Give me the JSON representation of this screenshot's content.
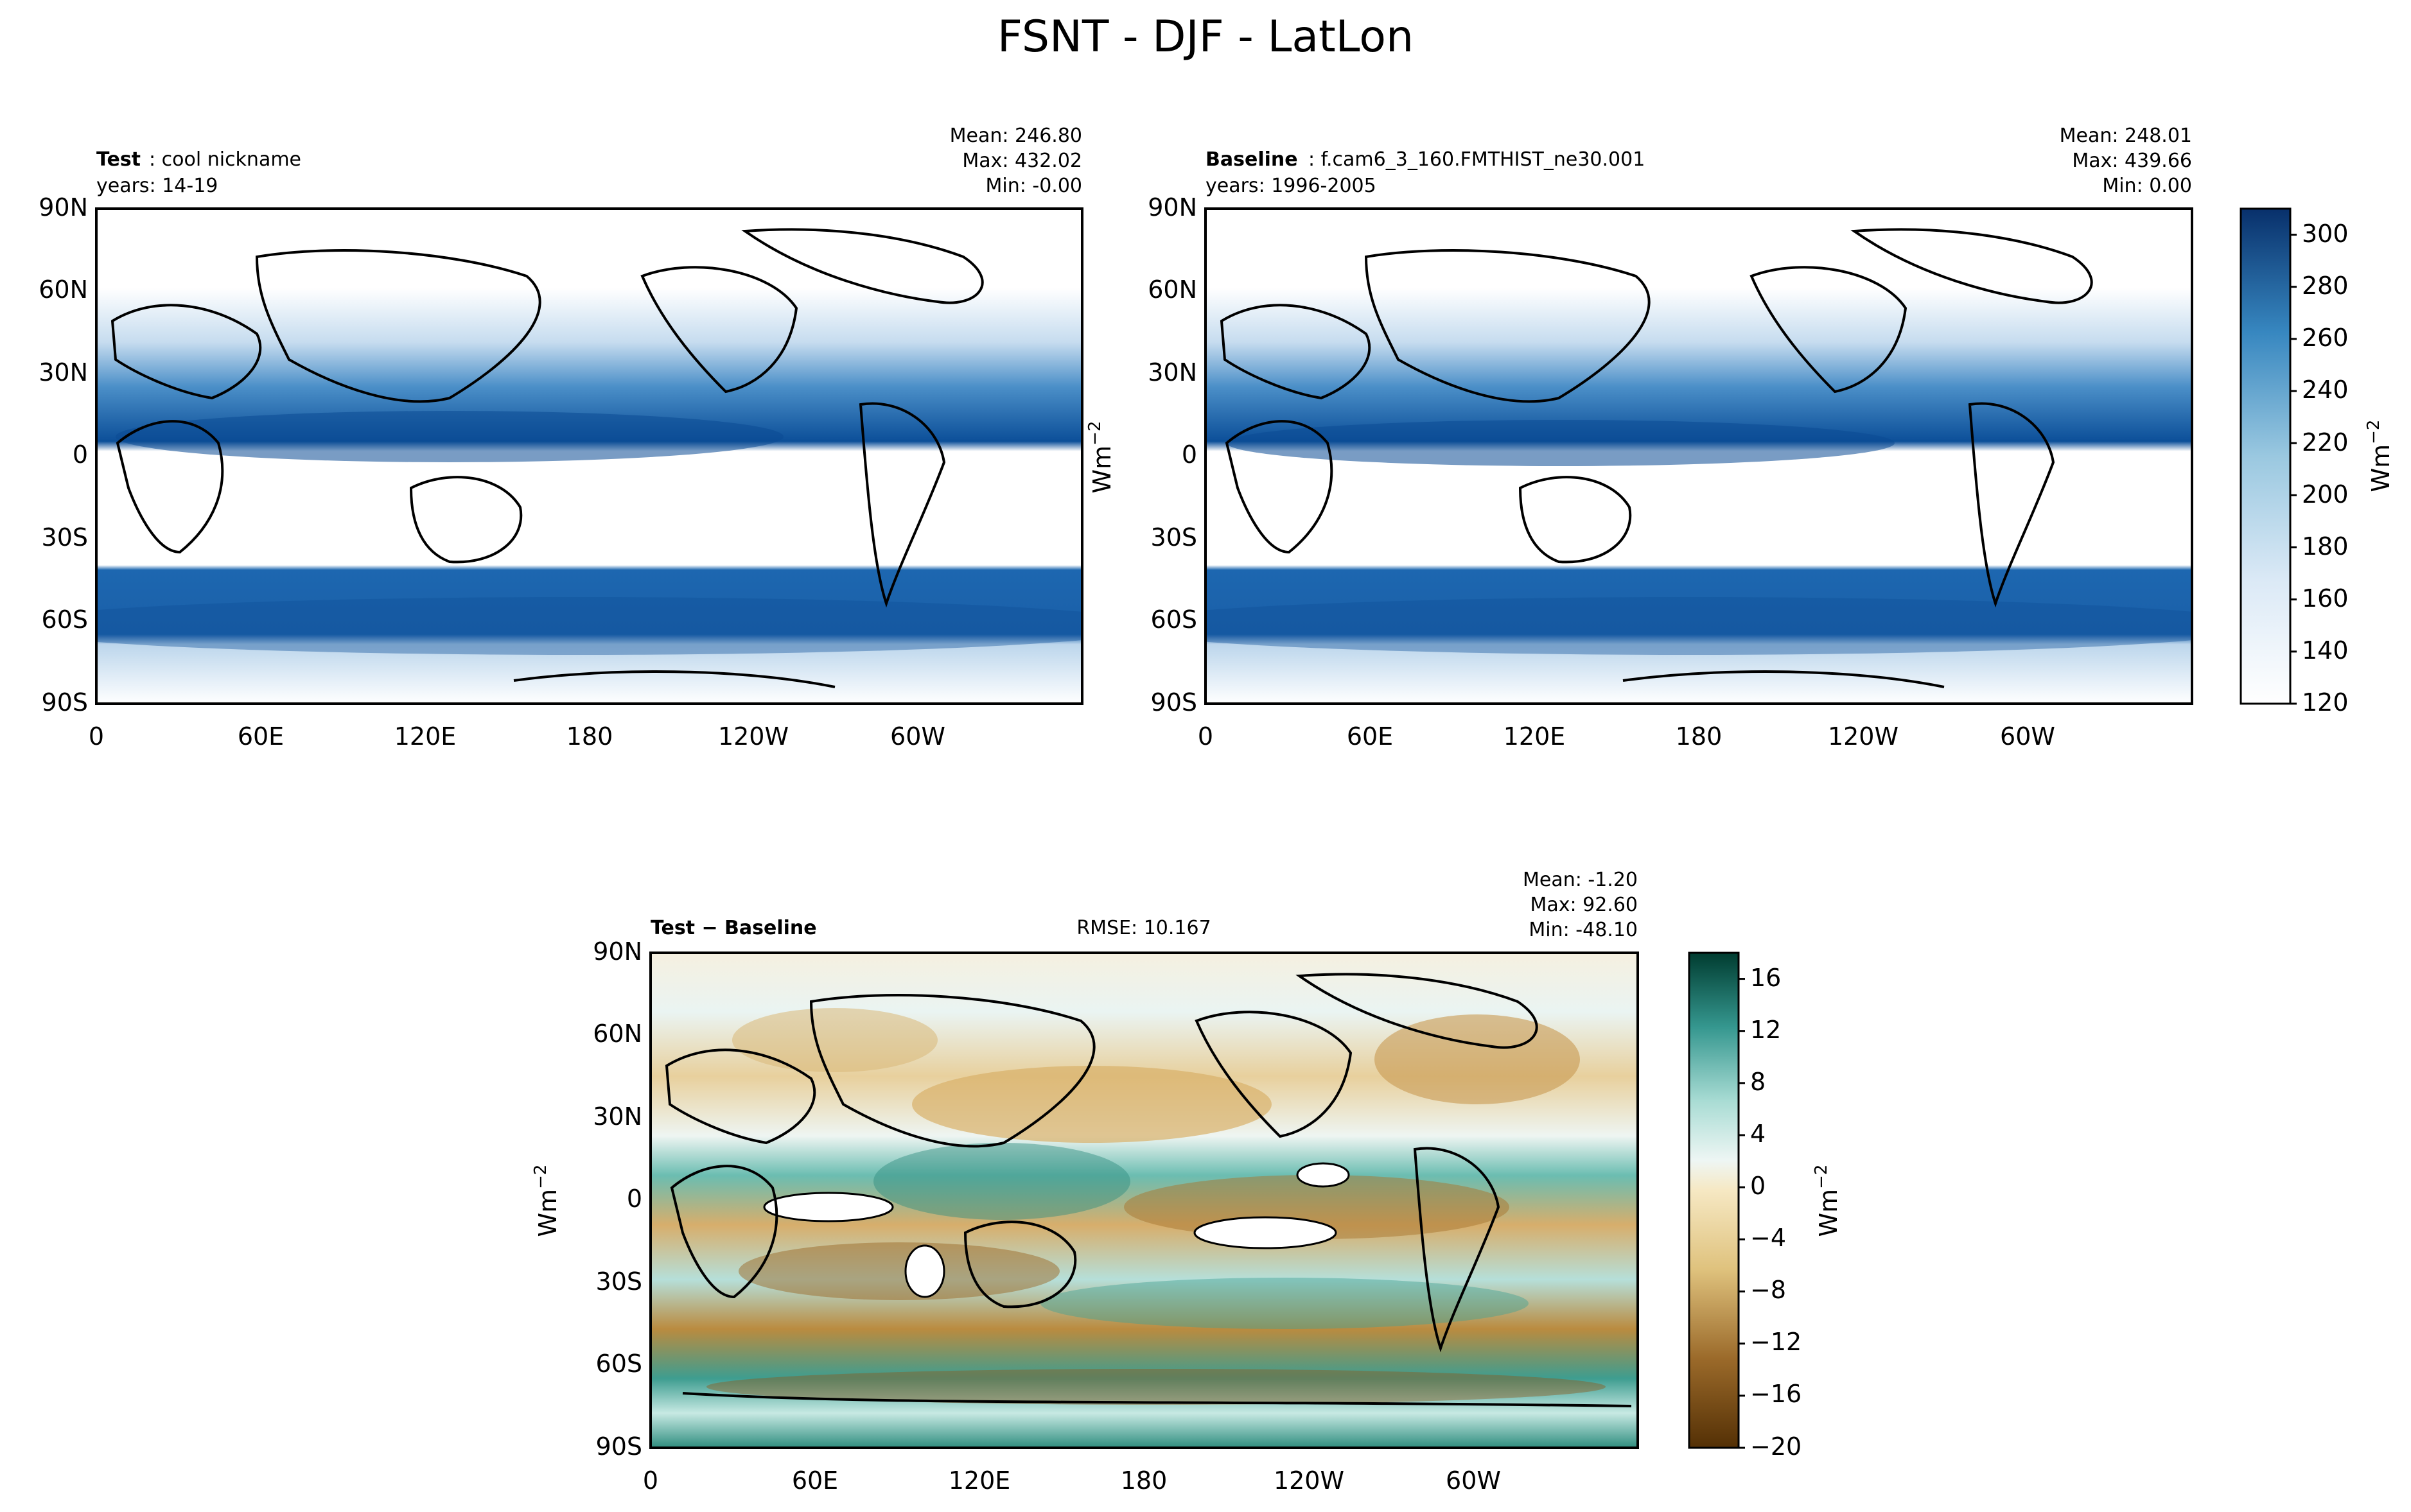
{
  "figure": {
    "title": "FSNT - DJF - LatLon"
  },
  "chart_data": [
    {
      "type": "heatmap",
      "id": "test",
      "label_bold": "Test",
      "label_rest": ": cool nickname",
      "subtitle": "years: 14-19",
      "stats": [
        "Mean: 246.80",
        "Max: 432.02",
        "Min: -0.00"
      ],
      "xticks": [
        "0",
        "60E",
        "120E",
        "180",
        "120W",
        "60W"
      ],
      "yticks": [
        "90N",
        "60N",
        "30N",
        "0",
        "30S",
        "60S",
        "90S"
      ],
      "xlim": [
        0,
        360
      ],
      "ylim": [
        -90,
        90
      ],
      "colormap": "Blues",
      "value_range": [
        120,
        310
      ]
    },
    {
      "type": "heatmap",
      "id": "baseline",
      "label_bold": "Baseline",
      "label_rest": ": f.cam6_3_160.FMTHIST_ne30.001",
      "subtitle": "years: 1996-2005",
      "stats": [
        "Mean: 248.01",
        "Max: 439.66",
        "Min:  0.00"
      ],
      "xticks": [
        "0",
        "60E",
        "120E",
        "180",
        "120W",
        "60W"
      ],
      "yticks": [
        "90N",
        "60N",
        "30N",
        "0",
        "30S",
        "60S",
        "90S"
      ],
      "ylabel": "Wm",
      "ylabel_sup": "−2",
      "xlim": [
        0,
        360
      ],
      "ylim": [
        -90,
        90
      ],
      "colorbar": {
        "ticks": [
          "120",
          "140",
          "160",
          "180",
          "200",
          "220",
          "240",
          "260",
          "280",
          "300"
        ],
        "tick_values": [
          120,
          140,
          160,
          180,
          200,
          220,
          240,
          260,
          280,
          300
        ],
        "range": [
          120,
          310
        ],
        "label": "Wm",
        "label_sup": "−2"
      }
    },
    {
      "type": "heatmap",
      "id": "diff",
      "label_bold": "Test − Baseline",
      "rmse": "RMSE: 10.167",
      "stats": [
        "Mean: -1.20",
        "Max: 92.60",
        "Min: -48.10"
      ],
      "xticks": [
        "0",
        "60E",
        "120E",
        "180",
        "120W",
        "60W"
      ],
      "yticks": [
        "90N",
        "60N",
        "30N",
        "0",
        "30S",
        "60S",
        "90S"
      ],
      "ylabel": "Wm",
      "ylabel_sup": "−2",
      "xlim": [
        0,
        360
      ],
      "ylim": [
        -90,
        90
      ],
      "colormap": "BrBG",
      "colorbar": {
        "ticks": [
          "16",
          "12",
          "8",
          "4",
          "0",
          "−4",
          "−8",
          "−12",
          "−16",
          "−20"
        ],
        "tick_values": [
          16,
          12,
          8,
          4,
          0,
          -4,
          -8,
          -12,
          -16,
          -20
        ],
        "range": [
          -20,
          18
        ],
        "label": "Wm",
        "label_sup": "−2"
      }
    }
  ]
}
